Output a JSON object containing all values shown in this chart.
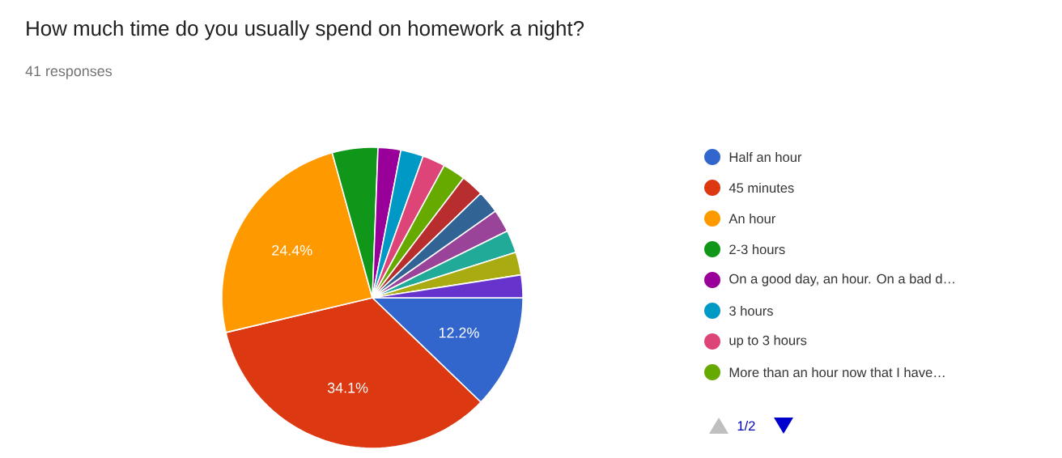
{
  "chart_data": {
    "type": "pie",
    "title": "How much time do you usually spend on homework a night?",
    "subtitle": "41 responses",
    "categories": [
      "Half an hour",
      "45 minutes",
      "An hour",
      "2-3 hours",
      "On a good day, an hour. On a bad d…",
      "3 hours",
      "up to 3 hours",
      "More than an hour now that I have…",
      null,
      null,
      null,
      null,
      null,
      null
    ],
    "values": [
      12.2,
      34.1,
      24.4,
      4.9,
      2.44,
      2.44,
      2.44,
      2.44,
      2.44,
      2.44,
      2.44,
      2.44,
      2.44,
      2.44
    ],
    "colors": [
      "#3366cc",
      "#dc3912",
      "#ff9900",
      "#109618",
      "#990099",
      "#0099c6",
      "#dd4477",
      "#66aa00",
      "#b82e2e",
      "#316395",
      "#994499",
      "#22aa99",
      "#aaaa11",
      "#6633cc"
    ],
    "value_labels": [
      "12.2%",
      "34.1%",
      "24.4%",
      null,
      null,
      null,
      null,
      null,
      null,
      null,
      null,
      null,
      null,
      null
    ],
    "legend": "right",
    "annotations": [
      "1/2"
    ]
  }
}
